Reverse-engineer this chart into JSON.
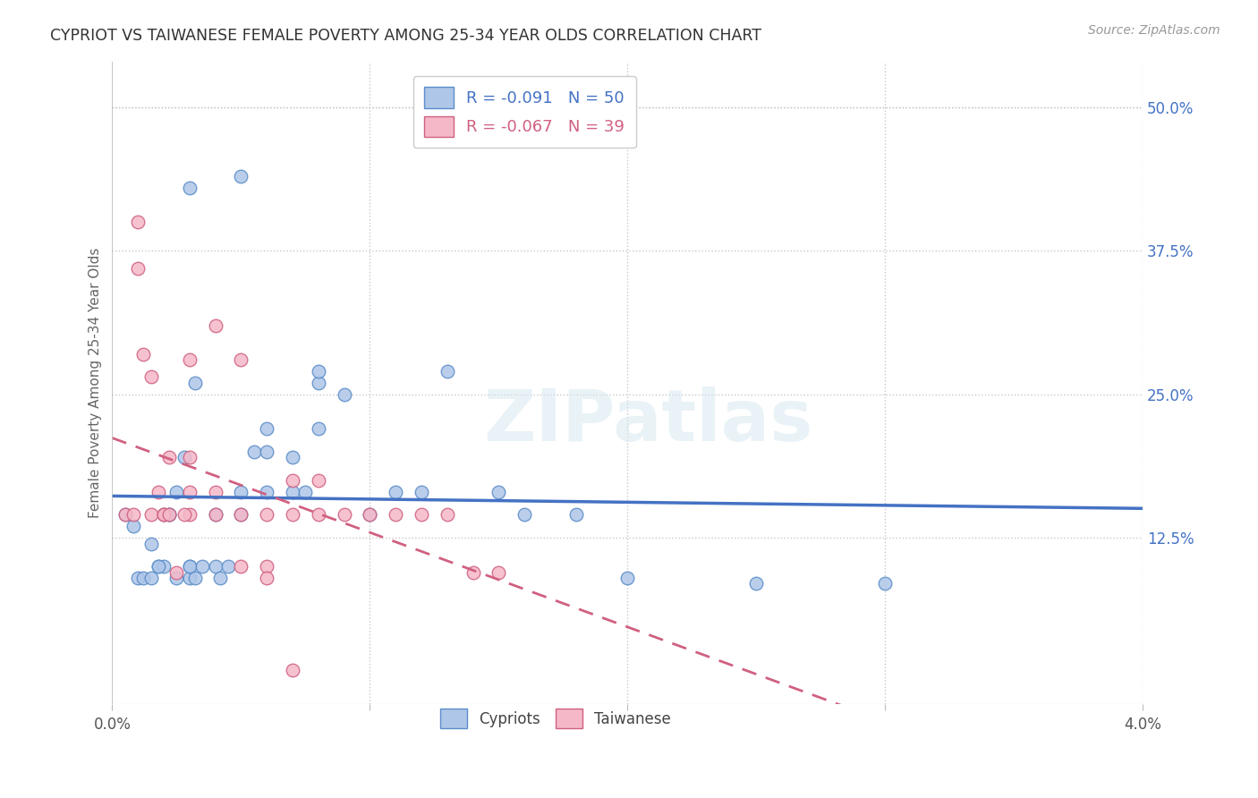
{
  "title": "CYPRIOT VS TAIWANESE FEMALE POVERTY AMONG 25-34 YEAR OLDS CORRELATION CHART",
  "source": "Source: ZipAtlas.com",
  "ylabel": "Female Poverty Among 25-34 Year Olds",
  "xlim": [
    0.0,
    0.04
  ],
  "ylim": [
    -0.02,
    0.54
  ],
  "xtick_labels": [
    "0.0%",
    "",
    "",
    "",
    "4.0%"
  ],
  "xtick_vals": [
    0.0,
    0.01,
    0.02,
    0.03,
    0.04
  ],
  "ytick_right_labels": [
    "50.0%",
    "37.5%",
    "25.0%",
    "12.5%"
  ],
  "ytick_right_vals": [
    0.5,
    0.375,
    0.25,
    0.125
  ],
  "cypriot_color": "#aec6e8",
  "taiwanese_color": "#f5b8c8",
  "cypriot_edge": "#5b8dc8",
  "taiwanese_edge": "#d06080",
  "cypriot_line_color": "#4472c4",
  "taiwanese_line_color": "#d06080",
  "background_color": "#ffffff",
  "grid_color": "#c8c8c8",
  "R_cypriot": -0.091,
  "N_cypriot": 50,
  "R_taiwanese": -0.067,
  "N_taiwanese": 39,
  "legend_label_cypriot": "Cypriots",
  "legend_label_taiwanese": "Taiwanese",
  "title_color": "#333333",
  "axis_label_color": "#4472c4",
  "watermark_text": "ZIPatlas",
  "cypriot_x": [
    0.0005,
    0.0008,
    0.001,
    0.0012,
    0.0015,
    0.0015,
    0.0018,
    0.002,
    0.002,
    0.0022,
    0.0025,
    0.003,
    0.003,
    0.003,
    0.0032,
    0.0035,
    0.004,
    0.004,
    0.0042,
    0.0045,
    0.005,
    0.005,
    0.0055,
    0.006,
    0.006,
    0.007,
    0.007,
    0.0075,
    0.008,
    0.008,
    0.003,
    0.005,
    0.006,
    0.008,
    0.009,
    0.01,
    0.011,
    0.012,
    0.013,
    0.015,
    0.016,
    0.018,
    0.02,
    0.025,
    0.03,
    0.0025,
    0.0028,
    0.0032,
    0.0022,
    0.0018
  ],
  "cypriot_y": [
    0.145,
    0.135,
    0.09,
    0.09,
    0.09,
    0.12,
    0.1,
    0.1,
    0.145,
    0.145,
    0.09,
    0.09,
    0.1,
    0.1,
    0.09,
    0.1,
    0.145,
    0.1,
    0.09,
    0.1,
    0.145,
    0.165,
    0.2,
    0.2,
    0.22,
    0.165,
    0.195,
    0.165,
    0.22,
    0.26,
    0.43,
    0.44,
    0.165,
    0.27,
    0.25,
    0.145,
    0.165,
    0.165,
    0.27,
    0.165,
    0.145,
    0.145,
    0.09,
    0.085,
    0.085,
    0.165,
    0.195,
    0.26,
    0.145,
    0.1
  ],
  "taiwanese_x": [
    0.0005,
    0.0008,
    0.001,
    0.001,
    0.0012,
    0.0015,
    0.0015,
    0.002,
    0.002,
    0.0022,
    0.0025,
    0.003,
    0.003,
    0.003,
    0.004,
    0.004,
    0.005,
    0.005,
    0.006,
    0.006,
    0.007,
    0.007,
    0.008,
    0.008,
    0.009,
    0.01,
    0.011,
    0.012,
    0.013,
    0.014,
    0.015,
    0.0018,
    0.0022,
    0.0028,
    0.003,
    0.004,
    0.005,
    0.006,
    0.007
  ],
  "taiwanese_y": [
    0.145,
    0.145,
    0.4,
    0.36,
    0.285,
    0.265,
    0.145,
    0.145,
    0.145,
    0.145,
    0.095,
    0.145,
    0.195,
    0.28,
    0.145,
    0.31,
    0.145,
    0.28,
    0.145,
    0.1,
    0.145,
    0.175,
    0.175,
    0.145,
    0.145,
    0.145,
    0.145,
    0.145,
    0.145,
    0.095,
    0.095,
    0.165,
    0.195,
    0.145,
    0.165,
    0.165,
    0.1,
    0.09,
    0.01
  ]
}
